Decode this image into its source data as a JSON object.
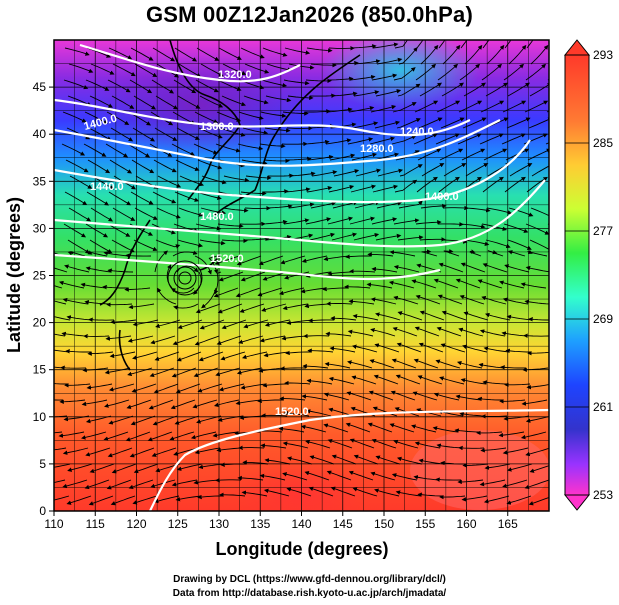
{
  "title": "GSM 00Z12Jan2026 (850.0hPa)",
  "x_axis": {
    "label": "Longitude (degrees)",
    "ticks": [
      "110",
      "115",
      "120",
      "125",
      "130",
      "135",
      "140",
      "145",
      "150",
      "155",
      "160",
      "165"
    ]
  },
  "y_axis": {
    "label": "Latitude  (degrees)",
    "ticks": [
      "0",
      "5",
      "10",
      "15",
      "20",
      "25",
      "30",
      "35",
      "40",
      "45"
    ]
  },
  "colorbar": {
    "labels": [
      "293",
      "285",
      "277",
      "269",
      "261",
      "253"
    ],
    "min": 253,
    "max": 293,
    "colors": [
      "#ff33cc",
      "#cc33ff",
      "#6633ff",
      "#0033ff",
      "#0099ff",
      "#33ffcc",
      "#33ff66",
      "#66ff33",
      "#ccff33",
      "#ffff33",
      "#ffcc33",
      "#ff9933",
      "#ff6633",
      "#ff3333"
    ]
  },
  "contour_labels": [
    {
      "text": "1320.0"
    },
    {
      "text": "1360.0"
    },
    {
      "text": "1400.0"
    },
    {
      "text": "1440.0"
    },
    {
      "text": "1240.0"
    },
    {
      "text": "1280.0"
    },
    {
      "text": "1400.0"
    },
    {
      "text": "1480.0"
    },
    {
      "text": "1520.0"
    },
    {
      "text": "1520.0"
    }
  ],
  "credits": {
    "line1": "Drawing by DCL (https://www.gfd-dennou.org/library/dcl/)",
    "line2": "Data from http://database.rish.kyoto-u.ac.jp/arch/jmadata/"
  }
}
